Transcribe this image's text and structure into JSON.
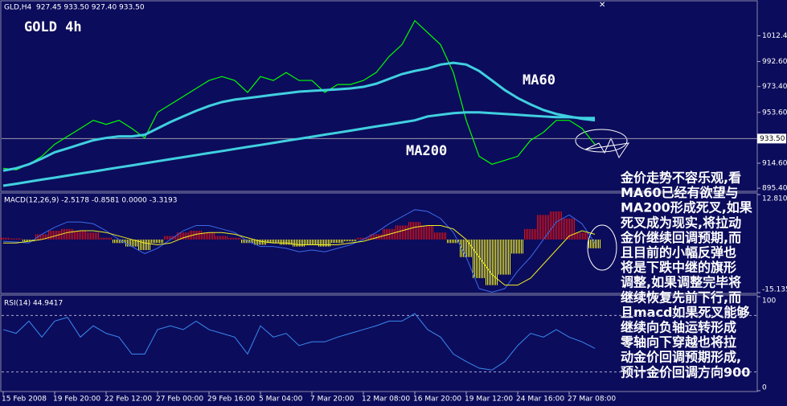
{
  "chart_data": [
    {
      "type": "line",
      "title": "GLD,H4  927.45 933.50 927.40 933.50",
      "annotations": [
        "GOLD 4h"
      ],
      "note": [
        "金价走势不容乐观,看",
        "MA60已经有欲望与",
        "MA200形成死叉,如果",
        "死叉成为现实,将拉动",
        "金价继续回调预期,而",
        "且目前的小幅反弹也",
        "将是下跌中继的旗形",
        "调整,如果调整完毕将",
        "继续恢复先前下行,而",
        "且macd如果死叉能够",
        "继续向负轴运转形成",
        "零轴向下穿越也将拉",
        "动金价回调预期形成,",
        "预计金价回调方向900"
      ],
      "categories": [
        "15 Feb 2008",
        null,
        null,
        null,
        "19 Feb 20:00",
        null,
        null,
        null,
        "22 Feb 12:00",
        null,
        null,
        null,
        "27 Feb 00:00",
        null,
        null,
        null,
        "29 Feb 16:00",
        null,
        null,
        null,
        "5 Mar 04:00",
        null,
        null,
        null,
        "7 Mar 20:00",
        null,
        null,
        null,
        "12 Mar 08:00",
        null,
        null,
        null,
        "16 Mar 20:00",
        null,
        null,
        null,
        "19 Mar 12:00",
        null,
        null,
        null,
        "24 Mar 16:00",
        null,
        null,
        null,
        "27 Mar 08:00",
        null,
        null
      ],
      "series": [
        {
          "color": "#00ff00",
          "width": 1.2,
          "values": [
            910.7,
            909.5,
            913.8,
            919.9,
            929.1,
            935.2,
            941.3,
            947.5,
            944.4,
            947.5,
            941.3,
            934.0,
            953.6,
            959.7,
            965.8,
            972.0,
            978.1,
            981.1,
            978.1,
            968.9,
            981.1,
            978.1,
            984.2,
            978.1,
            978.1,
            968.9,
            975.0,
            975.0,
            978.1,
            984.2,
            996.5,
            1005.6,
            1024.0,
            1014.8,
            1005.6,
            984.2,
            947.5,
            919.9,
            913.8,
            916.8,
            919.9,
            932.2,
            938.3,
            947.5,
            947.5,
            941.3,
            929.1
          ]
        },
        {
          "name": "MA60",
          "color": "#40d0e0",
          "width": 3,
          "values": [
            908.9,
            910.7,
            913.8,
            918.1,
            923.0,
            926.0,
            929.1,
            932.2,
            934.0,
            935.2,
            935.2,
            936.4,
            941.3,
            946.2,
            950.5,
            954.8,
            958.5,
            961.5,
            963.4,
            964.6,
            965.8,
            967.1,
            968.3,
            969.5,
            970.1,
            970.7,
            971.3,
            972.0,
            973.2,
            975.6,
            979.3,
            983.0,
            985.4,
            987.3,
            990.3,
            991.6,
            990.3,
            985.4,
            978.1,
            970.7,
            964.6,
            959.7,
            955.4,
            952.4,
            950.5,
            948.7,
            947.5
          ]
        },
        {
          "name": "MA200",
          "color": "#40d0e0",
          "width": 3,
          "values": [
            897.3,
            898.8,
            900.4,
            902.0,
            903.5,
            905.1,
            906.7,
            908.2,
            909.8,
            911.4,
            912.9,
            914.5,
            916.1,
            917.7,
            919.2,
            920.8,
            922.4,
            923.9,
            925.5,
            927.1,
            928.6,
            930.2,
            931.8,
            933.3,
            934.9,
            936.5,
            938.0,
            939.6,
            941.2,
            942.8,
            944.3,
            945.9,
            947.5,
            950.5,
            951.8,
            953.0,
            953.6,
            953.6,
            953.0,
            952.4,
            951.8,
            951.1,
            950.5,
            949.9,
            949.9,
            949.3,
            949.3
          ]
        }
      ],
      "ylim": [
        893,
        1038
      ],
      "yticks": [
        {
          "value": 1012.4,
          "label": "1012.40"
        },
        {
          "value": 992.6,
          "label": "992.60"
        },
        {
          "value": 973.4,
          "label": "973.40"
        },
        {
          "value": 953.6,
          "label": "953.60"
        },
        {
          "value": 914.6,
          "label": "914.60"
        },
        {
          "value": 895.4,
          "label": "895.40"
        }
      ],
      "price_line": {
        "value": 933.5,
        "label": "933.50"
      }
    },
    {
      "type": "combo",
      "title": "MACD(12,26,9) -2.5178 -0.8581 0.0000 -3.3193",
      "series": [
        {
          "type": "bar",
          "color": "#e01010",
          "negative_color": "#f0f020",
          "values": [
            0.5,
            0.3,
            -0.5,
            1.5,
            2.5,
            3,
            2.5,
            2,
            0.5,
            -1,
            -2,
            -3,
            -1,
            1,
            2,
            2.5,
            2,
            1,
            0.5,
            -1,
            -1.5,
            -1,
            -1.5,
            -2,
            -1.5,
            -2,
            -1,
            -0.5,
            0.5,
            1.5,
            3,
            4,
            5,
            4,
            2,
            -1,
            -5,
            -11,
            -13,
            -10,
            -4,
            3,
            7,
            8,
            6,
            2,
            -2.5
          ]
        },
        {
          "type": "line",
          "color": "#3a6ae8",
          "values": [
            -0.5,
            -0.7,
            -1,
            1.5,
            3.5,
            5,
            5,
            4.5,
            2.5,
            0,
            -2,
            -4,
            -2.5,
            0,
            2.5,
            4,
            4,
            3,
            2,
            -0.5,
            -2,
            -2,
            -2.5,
            -3.5,
            -3,
            -3.5,
            -2.5,
            -1.5,
            0,
            2,
            4.5,
            6.5,
            8.5,
            8,
            6,
            2,
            -5,
            -14,
            -15,
            -14,
            -9,
            -5,
            0,
            5,
            7,
            4.5,
            -1
          ]
        },
        {
          "type": "line",
          "color": "#f0f020",
          "values": [
            -1,
            -1,
            -0.5,
            0,
            1,
            2,
            2.5,
            2.5,
            2,
            1,
            0,
            -1,
            -1.5,
            -1,
            0.5,
            1.5,
            2,
            2,
            1.5,
            0.5,
            -0.5,
            -1,
            -1,
            -1.5,
            -1.5,
            -1.5,
            -1.5,
            -1,
            -0.5,
            0.5,
            1.5,
            2.5,
            3.5,
            4,
            4,
            3,
            0,
            -5,
            -10,
            -13,
            -13,
            -11,
            -7,
            -3,
            1,
            2.5,
            1.5
          ]
        }
      ],
      "ylim": [
        -15.1352,
        12.8109
      ],
      "yticks": [
        {
          "value": 12.8109,
          "label": "12.8109"
        },
        {
          "value": -15.1352,
          "label": "-15.1352"
        }
      ]
    },
    {
      "type": "line",
      "title": "RSI(14) 44.9417",
      "series": [
        {
          "color": "#3a8af0",
          "width": 1,
          "values": [
            65,
            61,
            74,
            57,
            74,
            78,
            57,
            69,
            61,
            57,
            39,
            39,
            65,
            69,
            65,
            74,
            65,
            61,
            57,
            39,
            69,
            57,
            61,
            48,
            52,
            52,
            57,
            61,
            65,
            69,
            74,
            74,
            82,
            65,
            57,
            39,
            31,
            24,
            22,
            31,
            48,
            61,
            57,
            65,
            57,
            52,
            45
          ]
        }
      ],
      "levels": [
        80,
        20
      ],
      "ylim": [
        0,
        100
      ],
      "yticks": [
        100,
        0
      ]
    }
  ]
}
